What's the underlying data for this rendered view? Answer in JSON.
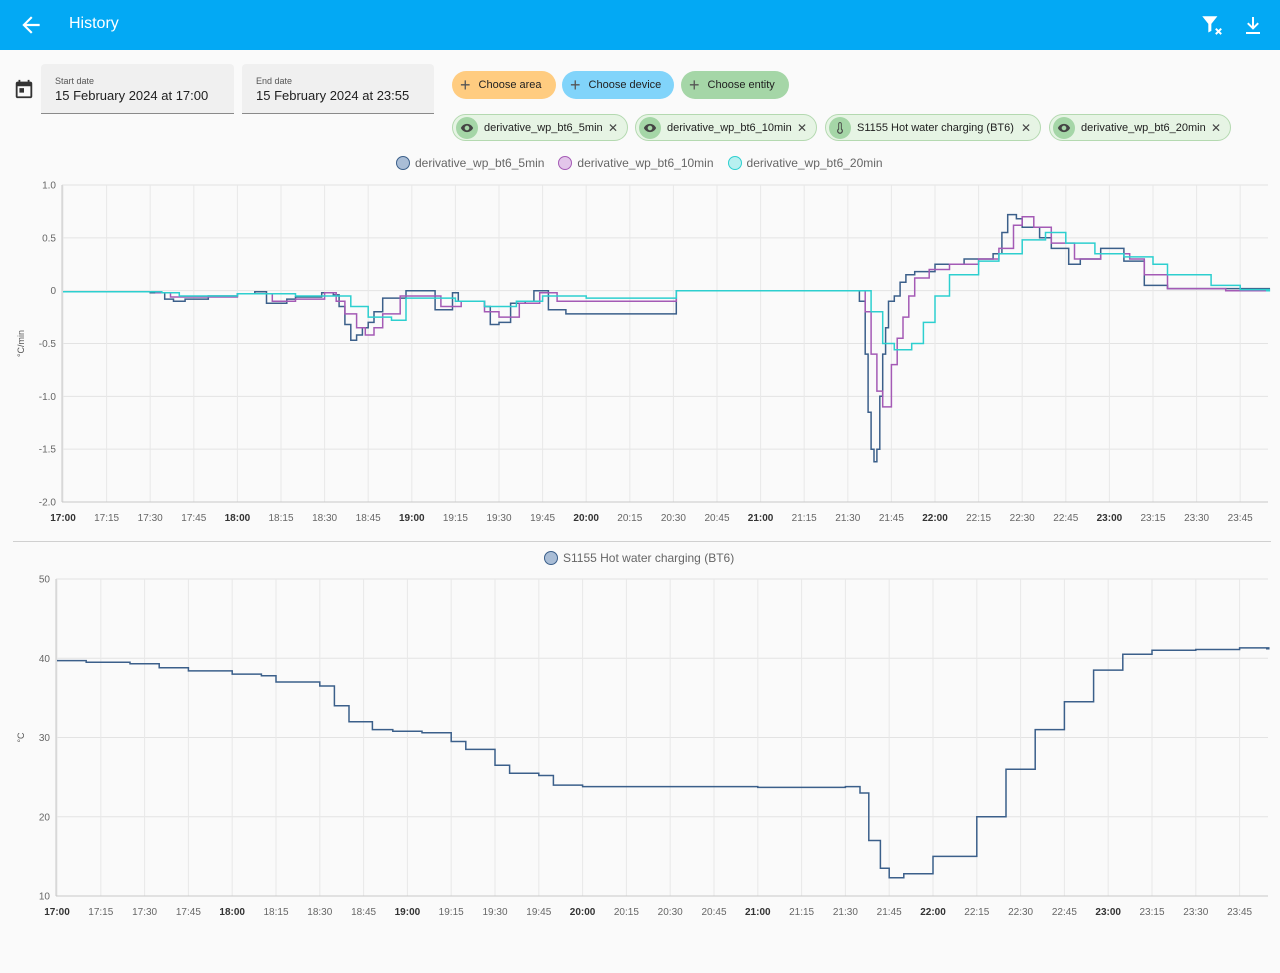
{
  "header": {
    "title": "History",
    "icons": {
      "back": "arrow-left-icon",
      "filter": "filter-remove-icon",
      "download": "download-icon"
    }
  },
  "date_range": {
    "icon": "calendar-icon",
    "start": {
      "label": "Start date",
      "value": "15 February 2024 at 17:00"
    },
    "end": {
      "label": "End date",
      "value": "15 February 2024 at 23:55"
    }
  },
  "target_picker": {
    "area": {
      "label": "Choose area",
      "color": "#ffcc80"
    },
    "device": {
      "label": "Choose device",
      "color": "#81d4fa"
    },
    "entity": {
      "label": "Choose entity",
      "color": "#a5d6a7"
    }
  },
  "selected_entities": [
    {
      "label": "derivative_wp_bt6_5min",
      "icon": "eye-icon"
    },
    {
      "label": "derivative_wp_bt6_10min",
      "icon": "eye-icon"
    },
    {
      "label": "S1155 Hot water charging (BT6)",
      "icon": "thermometer-icon"
    },
    {
      "label": "derivative_wp_bt6_20min",
      "icon": "eye-icon"
    }
  ],
  "chart_data": [
    {
      "type": "line",
      "step": true,
      "ylabel": "°C/min",
      "ylim": [
        -2.0,
        1.0
      ],
      "yticks": [
        "1.0",
        "0.5",
        "0",
        "-0.5",
        "-1.0",
        "-1.5",
        "-2.0"
      ],
      "xticks": [
        "17:00",
        "17:15",
        "17:30",
        "17:45",
        "18:00",
        "18:15",
        "18:30",
        "18:45",
        "19:00",
        "19:15",
        "19:30",
        "19:45",
        "20:00",
        "20:15",
        "20:30",
        "20:45",
        "21:00",
        "21:15",
        "21:30",
        "21:45",
        "22:00",
        "22:15",
        "22:30",
        "22:45",
        "23:00",
        "23:15",
        "23:30",
        "23:45"
      ],
      "bold_ticks": [
        "17:00",
        "18:00",
        "19:00",
        "20:00",
        "21:00",
        "22:00",
        "23:00"
      ],
      "grid": true,
      "legend_position": "top-center",
      "series": [
        {
          "name": "derivative_wp_bt6_5min",
          "color": "#3b5f8a",
          "points": [
            [
              "17:00",
              -0.01
            ],
            [
              "17:30",
              -0.02
            ],
            [
              "17:35",
              -0.08
            ],
            [
              "17:38",
              -0.1
            ],
            [
              "17:42",
              -0.08
            ],
            [
              "17:50",
              -0.05
            ],
            [
              "18:00",
              -0.03
            ],
            [
              "18:06",
              -0.01
            ],
            [
              "18:10",
              -0.12
            ],
            [
              "18:15",
              -0.12
            ],
            [
              "18:17",
              -0.08
            ],
            [
              "18:20",
              -0.06
            ],
            [
              "18:29",
              -0.02
            ],
            [
              "18:33",
              -0.04
            ],
            [
              "18:35",
              -0.15
            ],
            [
              "18:37",
              -0.32
            ],
            [
              "18:39",
              -0.47
            ],
            [
              "18:41",
              -0.42
            ],
            [
              "18:43",
              -0.35
            ],
            [
              "18:45",
              -0.3
            ],
            [
              "18:47",
              -0.2
            ],
            [
              "18:50",
              -0.07
            ],
            [
              "18:55",
              -0.07
            ],
            [
              "18:58",
              0.0
            ],
            [
              "19:05",
              0.0
            ],
            [
              "19:08",
              -0.18
            ],
            [
              "19:12",
              -0.18
            ],
            [
              "19:14",
              -0.02
            ],
            [
              "19:16",
              -0.1
            ],
            [
              "19:20",
              -0.1
            ],
            [
              "19:25",
              -0.15
            ],
            [
              "19:27",
              -0.32
            ],
            [
              "19:30",
              -0.3
            ],
            [
              "19:34",
              -0.12
            ],
            [
              "19:39",
              -0.1
            ],
            [
              "19:42",
              0.0
            ],
            [
              "19:45",
              0.0
            ],
            [
              "19:47",
              -0.18
            ],
            [
              "19:53",
              -0.22
            ],
            [
              "20:15",
              -0.22
            ],
            [
              "20:31",
              -0.22
            ],
            [
              "20:31",
              0.0
            ],
            [
              "21:30",
              0.0
            ],
            [
              "21:34",
              -0.1
            ],
            [
              "21:36",
              -0.6
            ],
            [
              "21:37",
              -1.15
            ],
            [
              "21:38",
              -1.5
            ],
            [
              "21:39",
              -1.62
            ],
            [
              "21:40",
              -1.5
            ],
            [
              "21:41",
              -1.0
            ],
            [
              "21:42",
              -0.6
            ],
            [
              "21:43",
              -0.35
            ],
            [
              "21:44",
              -0.1
            ],
            [
              "21:46",
              -0.05
            ],
            [
              "21:48",
              0.08
            ],
            [
              "21:50",
              0.15
            ],
            [
              "21:53",
              0.18
            ],
            [
              "22:00",
              0.25
            ],
            [
              "22:10",
              0.3
            ],
            [
              "22:20",
              0.35
            ],
            [
              "22:23",
              0.55
            ],
            [
              "22:25",
              0.72
            ],
            [
              "22:28",
              0.68
            ],
            [
              "22:30",
              0.6
            ],
            [
              "22:36",
              0.5
            ],
            [
              "22:40",
              0.4
            ],
            [
              "22:46",
              0.25
            ],
            [
              "22:50",
              0.3
            ],
            [
              "22:57",
              0.4
            ],
            [
              "23:05",
              0.28
            ],
            [
              "23:12",
              0.05
            ],
            [
              "23:20",
              0.02
            ],
            [
              "23:35",
              0.02
            ],
            [
              "23:55",
              0.0
            ]
          ]
        },
        {
          "name": "derivative_wp_bt6_10min",
          "color": "#a45ab5",
          "points": [
            [
              "17:00",
              -0.01
            ],
            [
              "17:32",
              -0.02
            ],
            [
              "17:37",
              -0.06
            ],
            [
              "17:44",
              -0.06
            ],
            [
              "18:00",
              -0.03
            ],
            [
              "18:09",
              -0.03
            ],
            [
              "18:12",
              -0.1
            ],
            [
              "18:20",
              -0.08
            ],
            [
              "18:30",
              -0.02
            ],
            [
              "18:34",
              -0.1
            ],
            [
              "18:37",
              -0.22
            ],
            [
              "18:41",
              -0.35
            ],
            [
              "18:44",
              -0.42
            ],
            [
              "18:47",
              -0.35
            ],
            [
              "18:50",
              -0.22
            ],
            [
              "18:56",
              -0.05
            ],
            [
              "19:05",
              -0.05
            ],
            [
              "19:10",
              -0.15
            ],
            [
              "19:17",
              -0.1
            ],
            [
              "19:25",
              -0.2
            ],
            [
              "19:30",
              -0.25
            ],
            [
              "19:37",
              -0.12
            ],
            [
              "19:44",
              -0.02
            ],
            [
              "19:50",
              -0.1
            ],
            [
              "20:00",
              -0.1
            ],
            [
              "20:31",
              -0.1
            ],
            [
              "20:31",
              0.0
            ],
            [
              "21:30",
              0.0
            ],
            [
              "21:36",
              -0.2
            ],
            [
              "21:38",
              -0.6
            ],
            [
              "21:40",
              -0.95
            ],
            [
              "21:42",
              -1.1
            ],
            [
              "21:45",
              -0.7
            ],
            [
              "21:47",
              -0.45
            ],
            [
              "21:49",
              -0.25
            ],
            [
              "21:51",
              -0.05
            ],
            [
              "21:53",
              0.12
            ],
            [
              "21:58",
              0.2
            ],
            [
              "22:05",
              0.25
            ],
            [
              "22:15",
              0.3
            ],
            [
              "22:22",
              0.4
            ],
            [
              "22:27",
              0.62
            ],
            [
              "22:30",
              0.7
            ],
            [
              "22:34",
              0.6
            ],
            [
              "22:40",
              0.45
            ],
            [
              "22:48",
              0.3
            ],
            [
              "22:57",
              0.35
            ],
            [
              "23:07",
              0.3
            ],
            [
              "23:12",
              0.15
            ],
            [
              "23:20",
              0.02
            ],
            [
              "23:40",
              0.0
            ],
            [
              "23:55",
              0.0
            ]
          ]
        },
        {
          "name": "derivative_wp_bt6_20min",
          "color": "#2dcfcf",
          "points": [
            [
              "17:00",
              -0.01
            ],
            [
              "17:34",
              -0.02
            ],
            [
              "17:40",
              -0.05
            ],
            [
              "18:00",
              -0.03
            ],
            [
              "18:14",
              -0.03
            ],
            [
              "18:20",
              -0.05
            ],
            [
              "18:33",
              -0.05
            ],
            [
              "18:39",
              -0.15
            ],
            [
              "18:45",
              -0.25
            ],
            [
              "18:53",
              -0.28
            ],
            [
              "18:58",
              -0.07
            ],
            [
              "19:07",
              -0.07
            ],
            [
              "19:15",
              -0.1
            ],
            [
              "19:25",
              -0.15
            ],
            [
              "19:36",
              -0.1
            ],
            [
              "19:45",
              -0.05
            ],
            [
              "20:00",
              -0.07
            ],
            [
              "20:31",
              -0.07
            ],
            [
              "20:31",
              0.0
            ],
            [
              "21:30",
              0.0
            ],
            [
              "21:38",
              -0.2
            ],
            [
              "21:42",
              -0.5
            ],
            [
              "21:46",
              -0.56
            ],
            [
              "21:52",
              -0.5
            ],
            [
              "21:56",
              -0.3
            ],
            [
              "22:00",
              -0.05
            ],
            [
              "22:05",
              0.15
            ],
            [
              "22:15",
              0.28
            ],
            [
              "22:22",
              0.35
            ],
            [
              "22:30",
              0.48
            ],
            [
              "22:38",
              0.55
            ],
            [
              "22:45",
              0.45
            ],
            [
              "22:55",
              0.35
            ],
            [
              "23:05",
              0.32
            ],
            [
              "23:15",
              0.25
            ],
            [
              "23:20",
              0.15
            ],
            [
              "23:35",
              0.05
            ],
            [
              "23:45",
              0.01
            ],
            [
              "23:55",
              0.0
            ]
          ]
        }
      ]
    },
    {
      "type": "line",
      "step": true,
      "ylabel": "°C",
      "ylim": [
        10,
        50
      ],
      "yticks": [
        "50",
        "40",
        "30",
        "20",
        "10"
      ],
      "xticks": [
        "17:00",
        "17:15",
        "17:30",
        "17:45",
        "18:00",
        "18:15",
        "18:30",
        "18:45",
        "19:00",
        "19:15",
        "19:30",
        "19:45",
        "20:00",
        "20:15",
        "20:30",
        "20:45",
        "21:00",
        "21:15",
        "21:30",
        "21:45",
        "22:00",
        "22:15",
        "22:30",
        "22:45",
        "23:00",
        "23:15",
        "23:30",
        "23:45"
      ],
      "bold_ticks": [
        "17:00",
        "18:00",
        "19:00",
        "20:00",
        "21:00",
        "22:00",
        "23:00"
      ],
      "grid": true,
      "legend_position": "top-center",
      "series": [
        {
          "name": "S1155 Hot water charging (BT6)",
          "color": "#3b5f8a",
          "points": [
            [
              "17:00",
              39.7
            ],
            [
              "17:10",
              39.5
            ],
            [
              "17:25",
              39.3
            ],
            [
              "17:35",
              38.8
            ],
            [
              "17:45",
              38.4
            ],
            [
              "18:00",
              38.0
            ],
            [
              "18:10",
              37.8
            ],
            [
              "18:15",
              37.0
            ],
            [
              "18:30",
              36.5
            ],
            [
              "18:35",
              34.0
            ],
            [
              "18:40",
              32.0
            ],
            [
              "18:48",
              31.0
            ],
            [
              "18:55",
              30.8
            ],
            [
              "19:05",
              30.6
            ],
            [
              "19:15",
              29.5
            ],
            [
              "19:20",
              28.5
            ],
            [
              "19:30",
              26.5
            ],
            [
              "19:35",
              25.5
            ],
            [
              "19:45",
              25.2
            ],
            [
              "19:50",
              24.0
            ],
            [
              "20:00",
              23.8
            ],
            [
              "20:30",
              23.8
            ],
            [
              "21:00",
              23.7
            ],
            [
              "21:30",
              23.8
            ],
            [
              "21:35",
              23.0
            ],
            [
              "21:38",
              17.0
            ],
            [
              "21:42",
              13.5
            ],
            [
              "21:45",
              12.3
            ],
            [
              "21:50",
              12.8
            ],
            [
              "22:00",
              15.0
            ],
            [
              "22:15",
              20.0
            ],
            [
              "22:25",
              26.0
            ],
            [
              "22:35",
              31.0
            ],
            [
              "22:45",
              34.5
            ],
            [
              "22:55",
              38.5
            ],
            [
              "23:05",
              40.5
            ],
            [
              "23:15",
              41.0
            ],
            [
              "23:30",
              41.1
            ],
            [
              "23:45",
              41.3
            ],
            [
              "23:55",
              41.2
            ]
          ]
        }
      ]
    }
  ]
}
